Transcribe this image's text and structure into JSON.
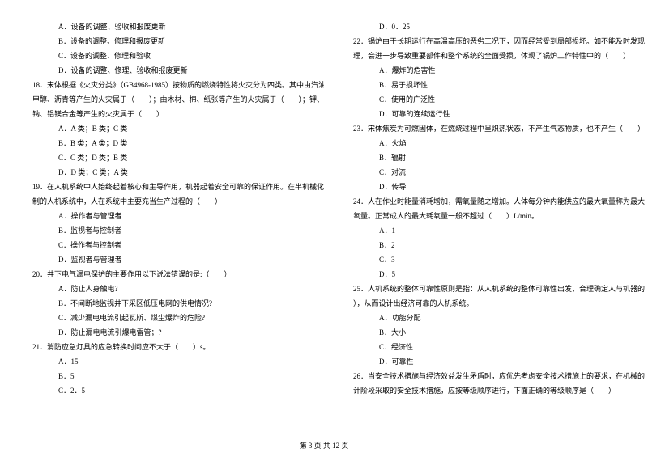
{
  "left_column": [
    {
      "cls": "indent-option",
      "text": "A．设备的调整、验收和报废更新"
    },
    {
      "cls": "indent-option",
      "text": "B．设备的调整、修理和报废更新"
    },
    {
      "cls": "indent-option",
      "text": "C．设备的调整、修理和验收"
    },
    {
      "cls": "indent-option",
      "text": "D．设备的调整、修理、验收和报废更新"
    },
    {
      "cls": "indent-question",
      "text": "18．宋体根据《火灾分类》（GB4968-1985）按物质的燃烧特性将火灾分为四类。其中由汽油、"
    },
    {
      "cls": "indent-continue",
      "text": "甲醇、沥青等产生的火灾属于（　　）；由木材、棉、纸张等产生的火灾属于（　　）；钾、"
    },
    {
      "cls": "indent-continue",
      "text": "钠、铝镁合金等产生的火灾属于（　　）"
    },
    {
      "cls": "indent-option",
      "text": "A．A 类；B 类；C 类"
    },
    {
      "cls": "indent-option",
      "text": "B．B 类；A 类；D 类"
    },
    {
      "cls": "indent-option",
      "text": "C．C 类；D 类；B 类"
    },
    {
      "cls": "indent-option",
      "text": "D．D 类；C 类；A 类"
    },
    {
      "cls": "indent-question",
      "text": "19．在人机系统中人始终起着核心和主导作用，机器起着安全可靠的保证作用。在半机械化控"
    },
    {
      "cls": "indent-continue",
      "text": "制的人机系统中，人在系统中主要充当生产过程的（　　）"
    },
    {
      "cls": "indent-option",
      "text": "A．操作者与管理者"
    },
    {
      "cls": "indent-option",
      "text": "B．监视者与控制者"
    },
    {
      "cls": "indent-option",
      "text": "C．操作者与控制者"
    },
    {
      "cls": "indent-option",
      "text": "D．监视者与管理者"
    },
    {
      "cls": "indent-question",
      "text": "20．井下电气漏电保护的主要作用以下说法错误的是:（　　）"
    },
    {
      "cls": "indent-option",
      "text": "A．防止人身触电?"
    },
    {
      "cls": "indent-option",
      "text": "B．不间断地监视井下采区低压电网的供电情况?"
    },
    {
      "cls": "indent-option",
      "text": "C．减少漏电电流引起瓦斯、煤尘爆炸的危险?"
    },
    {
      "cls": "indent-option",
      "text": "D．防止漏电电流引爆电雷管；?"
    },
    {
      "cls": "indent-question",
      "text": "21．消防应急灯具的应急转换时间应不大于（　　）s。"
    },
    {
      "cls": "indent-option",
      "text": "A．15"
    },
    {
      "cls": "indent-option",
      "text": "B．5"
    },
    {
      "cls": "indent-option",
      "text": "C．2．5"
    }
  ],
  "right_column": [
    {
      "cls": "indent-option",
      "text": "D．0．25"
    },
    {
      "cls": "indent-question",
      "text": "22．锅炉由于长期运行在高温高压的恶劣工况下，因而经常受到局部损坏。如不能及时发现处"
    },
    {
      "cls": "indent-continue",
      "text": "理，会进一步导致重要部件和整个系统的全面受损，体现了锅炉工作特性中的（　　）"
    },
    {
      "cls": "indent-option",
      "text": "A．爆炸的危害性"
    },
    {
      "cls": "indent-option",
      "text": "B．易于损坏性"
    },
    {
      "cls": "indent-option",
      "text": "C．使用的广泛性"
    },
    {
      "cls": "indent-option",
      "text": "D．可靠的连续运行性"
    },
    {
      "cls": "indent-question",
      "text": "23．宋体焦炭为可燃固体，在燃烧过程中呈炽热状态，不产生气态物质，也不产生（　　）"
    },
    {
      "cls": "indent-option",
      "text": "A．火焰"
    },
    {
      "cls": "indent-option",
      "text": "B．辐射"
    },
    {
      "cls": "indent-option",
      "text": "C．对流"
    },
    {
      "cls": "indent-option",
      "text": "D．传导"
    },
    {
      "cls": "indent-question",
      "text": "24．人在作业时能量消耗增加，需氧量随之增加。人体每分钟内能供应的最大氧量称为最大耗"
    },
    {
      "cls": "indent-continue",
      "text": "氧量。正常成人的最大耗氧量一般不超过（　　）L/min。"
    },
    {
      "cls": "indent-option",
      "text": "A．1"
    },
    {
      "cls": "indent-option",
      "text": "B．2"
    },
    {
      "cls": "indent-option",
      "text": "C．3"
    },
    {
      "cls": "indent-option",
      "text": "D．5"
    },
    {
      "cls": "indent-question",
      "text": "25．人机系统的整体可靠性原则是指：从人机系统的整体可靠性出发，合理确定人与机器的（"
    },
    {
      "cls": "indent-continue",
      "text": "），从而设计出经济可靠的人机系统。"
    },
    {
      "cls": "indent-option",
      "text": "A．功能分配"
    },
    {
      "cls": "indent-option",
      "text": "B．大小"
    },
    {
      "cls": "indent-option",
      "text": "C．经济性"
    },
    {
      "cls": "indent-option",
      "text": "D．可靠性"
    },
    {
      "cls": "indent-question",
      "text": "26．当安全技术措施与经济效益发生矛盾时，应优先考虑安全技术措施上的要求，在机械的设"
    },
    {
      "cls": "indent-continue",
      "text": "计阶段采取的安全技术措施，应按等级顺序进行，下面正确的等级顺序是（　　）"
    }
  ],
  "footer": "第 3 页 共 12 页"
}
